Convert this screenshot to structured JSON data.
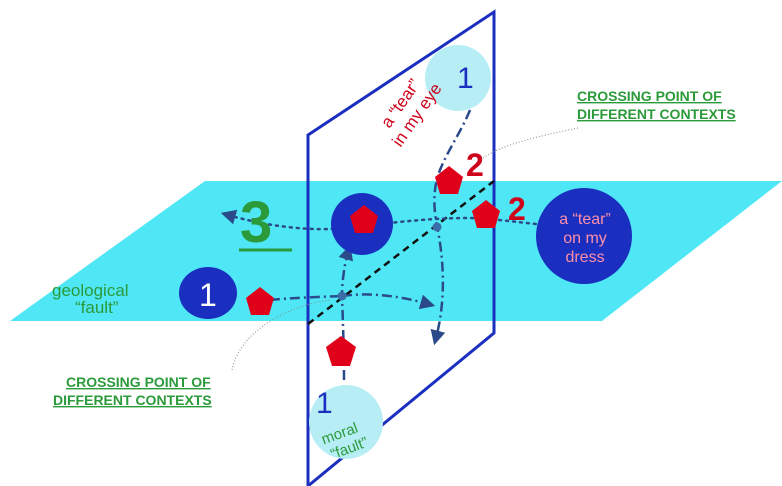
{
  "labels": {
    "three": "3",
    "geological_line1": "geological",
    "geological_line2": "“fault”",
    "moral_line1": "moral",
    "moral_line2": "“fault”",
    "tear_eye_line1": "a “tear”",
    "tear_eye_line2": "in my eye",
    "tear_dress_line1": "a “tear”",
    "tear_dress_line2": "on my",
    "tear_dress_line3": "dress",
    "crossing_top_line1": "CROSSING POINT OF",
    "crossing_top_line2": "DIFFERENT CONTEXTS",
    "crossing_bottom_line1": "CROSSING POINT OF",
    "crossing_bottom_line2": "DIFFERENT CONTEXTS",
    "node_left": "1",
    "node_top": "1",
    "node_bottom": "1",
    "node_two_upper": "2",
    "node_two_right": "2"
  },
  "colors": {
    "plane_fill": "#4fe7f5",
    "vertical_plane_stroke": "#1a2fbf",
    "dark_blue": "#1a2fbf",
    "light_cyan_circle": "#b7eef6",
    "pentagon": "#e0001a",
    "red_text": "#d0021b",
    "green": "#2b9a3a",
    "dashed_path": "#2b4a8a",
    "intersection_line": "#111111"
  }
}
